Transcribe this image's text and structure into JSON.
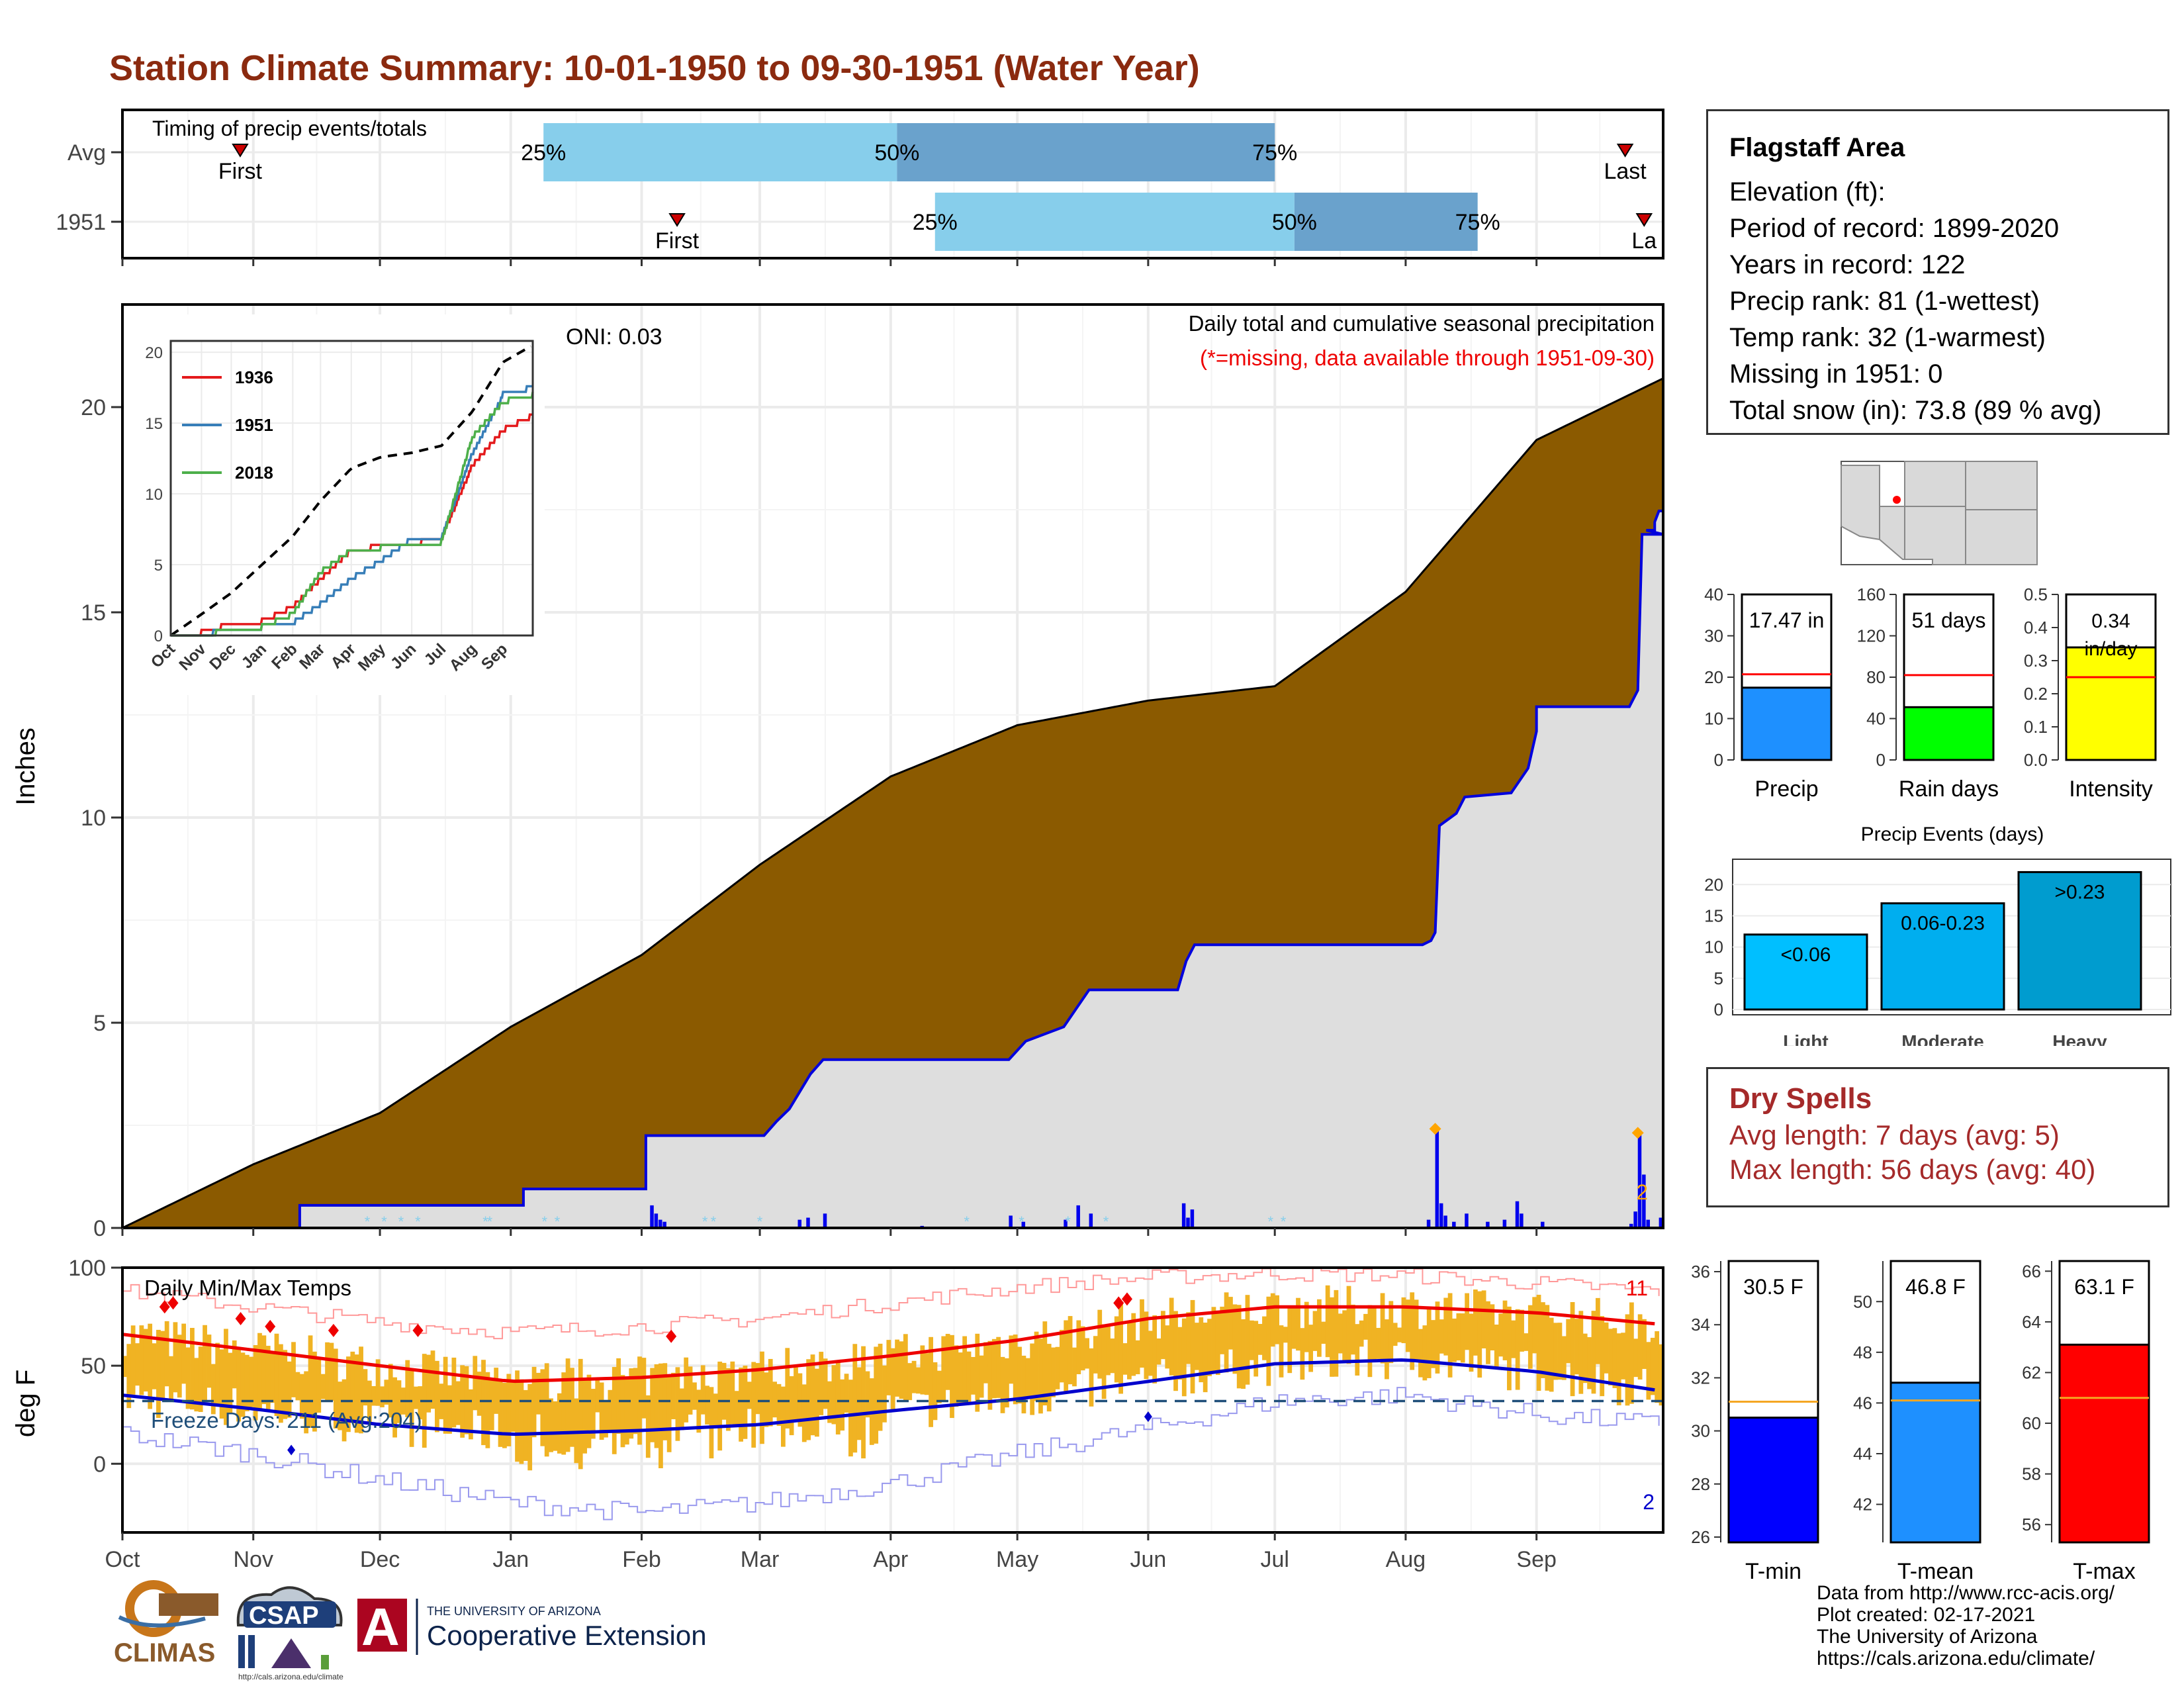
{
  "title": "Station Climate Summary: 10-01-1950 to 09-30-1951 (Water Year)",
  "timing_panel": {
    "label": "Timing of precip events/totals",
    "rows": [
      {
        "name": "Avg",
        "first_label": "First",
        "last_label": "Last",
        "first_month": 0.9,
        "last_month": 11.7,
        "p25": 3.25,
        "p50": 6.05,
        "p75": 9.0,
        "p25_label": "25%",
        "p50_label": "50%",
        "p75_label": "75%"
      },
      {
        "name": "1951",
        "first_label": "First",
        "last_label": "La",
        "first_month": 4.3,
        "last_month": 11.85,
        "p25": 6.35,
        "p50": 9.15,
        "p75": 10.55,
        "p25_label": "25%",
        "p50_label": "50%",
        "p75_label": "75%"
      }
    ],
    "colors": {
      "light": "#87ceeb",
      "dark": "#6aa2cc",
      "marker": "#cc0000"
    }
  },
  "months": [
    "Oct",
    "Nov",
    "Dec",
    "Jan",
    "Feb",
    "Mar",
    "Apr",
    "May",
    "Jun",
    "Jul",
    "Aug",
    "Sep"
  ],
  "precip_panel": {
    "ylabel": "Inches",
    "yticks": [
      "0",
      "5",
      "10",
      "15",
      "20"
    ],
    "header": "Daily total and cumulative seasonal precipitation",
    "missing_note": "(*=missing, data available through 1951-09-30)",
    "oni": "ONI: 0.03",
    "corner_count": "2",
    "colors": {
      "avg_fill": "#8b5a00",
      "obs_fill": "#dedede",
      "obs_line": "#0000dd",
      "daily_bar": "#0000ee",
      "trace": "#87ceeb",
      "marker": "#ffa500"
    }
  },
  "inset": {
    "yticks": [
      "0",
      "5",
      "10",
      "15",
      "20"
    ],
    "xticks": [
      "Oct",
      "Nov",
      "Dec",
      "Jan",
      "Feb",
      "Mar",
      "Apr",
      "May",
      "Jun",
      "Jul",
      "Aug",
      "Sep"
    ],
    "legend": [
      {
        "name": "1936",
        "color": "#e41a1c"
      },
      {
        "name": "1951",
        "color": "#377eb8"
      },
      {
        "name": "2018",
        "color": "#4daf4a"
      }
    ]
  },
  "temp_panel": {
    "ylabel": "deg F",
    "yticks": [
      "0",
      "50",
      "100"
    ],
    "label": "Daily Min/Max Temps",
    "freeze_label": "Freeze Days: 211 (Avg:204)",
    "max_record_count": "11",
    "min_record_count": "2",
    "colors": {
      "bar": "#f0b323",
      "max_smooth": "#ee0000",
      "min_smooth": "#0000cc",
      "record_max": "#ff9999",
      "record_min": "#9999ee",
      "freeze_line": "#1f4e79"
    }
  },
  "info": {
    "title": "Flagstaff Area",
    "lines": [
      "Elevation (ft):",
      "Period of record: 1899-2020",
      "Years in record: 122",
      "Precip rank: 81 (1-wettest)",
      "Temp rank: 32 (1-warmest)",
      "Missing in 1951: 0",
      "Total snow (in): 73.8 (89 % avg)"
    ]
  },
  "mini_bars": [
    {
      "name": "Precip",
      "value_label": "17.47 in",
      "value": 17.47,
      "avg": 20.7,
      "ymax": 40,
      "ticks": [
        "0",
        "10",
        "20",
        "30",
        "40"
      ],
      "tick_values": [
        0,
        10,
        20,
        30,
        40
      ],
      "color": "#1e90ff"
    },
    {
      "name": "Rain days",
      "value_label": "51 days",
      "value": 51,
      "avg": 82,
      "ymax": 160,
      "ticks": [
        "0",
        "40",
        "80",
        "120",
        "160"
      ],
      "tick_values": [
        0,
        40,
        80,
        120,
        160
      ],
      "color": "#00ff00"
    },
    {
      "name": "Intensity",
      "value_label": "0.34 in/day",
      "value_line1": "0.34",
      "value_line2": "in/day",
      "value": 0.34,
      "avg": 0.25,
      "ymax": 0.5,
      "ticks": [
        "0.0",
        "0.1",
        "0.2",
        "0.3",
        "0.4",
        "0.5"
      ],
      "tick_values": [
        0,
        0.1,
        0.2,
        0.3,
        0.4,
        0.5
      ],
      "color": "#ffff00"
    }
  ],
  "precip_events": {
    "title": "Precip Events (days)",
    "ticks": [
      "0",
      "5",
      "10",
      "15",
      "20"
    ],
    "bars": [
      {
        "category": "Light",
        "range_label": "<0.06",
        "value": 12,
        "color": "#00bfff"
      },
      {
        "category": "Moderate",
        "range_label": "0.06-0.23",
        "value": 17,
        "color": "#00aeef"
      },
      {
        "category": "Heavy",
        "range_label": ">0.23",
        "value": 22,
        "color": "#009ccf"
      }
    ]
  },
  "dry_spells": {
    "title": "Dry Spells",
    "avg_length": "Avg length: 7 days (avg: 5)",
    "max_length": "Max length: 56 days (avg: 40)"
  },
  "temp_bars": [
    {
      "name": "T-min",
      "value_label": "30.5 F",
      "value": 30.5,
      "avg": 31.1,
      "ymin": 25.8,
      "ymax": 36.4,
      "ticks": [
        "26",
        "28",
        "30",
        "32",
        "34",
        "36"
      ],
      "tick_values": [
        26,
        28,
        30,
        32,
        34,
        36
      ],
      "color": "#0000ff"
    },
    {
      "name": "T-mean",
      "value_label": "46.8 F",
      "value": 46.8,
      "avg": 46.1,
      "ymin": 40.5,
      "ymax": 51.6,
      "ticks": [
        "42",
        "44",
        "46",
        "48",
        "50"
      ],
      "tick_values": [
        42,
        44,
        46,
        48,
        50
      ],
      "color": "#1e90ff"
    },
    {
      "name": "T-max",
      "value_label": "63.1 F",
      "value": 63.1,
      "avg": 61.0,
      "ymin": 55.3,
      "ymax": 66.4,
      "ticks": [
        "56",
        "58",
        "60",
        "62",
        "64",
        "66"
      ],
      "tick_values": [
        56,
        58,
        60,
        62,
        64,
        66
      ],
      "color": "#ff0000"
    }
  ],
  "logos": {
    "climas": "CLIMAS",
    "csap": "CSAP",
    "csap_url": "http://cals.arizona.edu/climate",
    "ua_small": "THE UNIVERSITY OF ARIZONA",
    "ua_big": "Cooperative Extension",
    "ua_letter": "A"
  },
  "credits": [
    "Data from http://www.rcc-acis.org/",
    "Plot created: 02-17-2021",
    "The University of Arizona",
    "https://cals.arizona.edu/climate/"
  ],
  "chart_data": [
    {
      "type": "bar",
      "title": "Timing of precip events/totals",
      "categories": [
        "Avg",
        "1951"
      ],
      "series": [
        {
          "name": "First",
          "values": [
            "Nov",
            "Feb"
          ]
        },
        {
          "name": "25%",
          "values": [
            "Jan",
            "Apr"
          ]
        },
        {
          "name": "50%",
          "values": [
            "Apr",
            "Jul"
          ]
        },
        {
          "name": "75%",
          "values": [
            "Jul",
            "Aug"
          ]
        },
        {
          "name": "Last",
          "values": [
            "Sep",
            "Sep"
          ]
        }
      ]
    },
    {
      "type": "area",
      "title": "Daily total and cumulative seasonal precipitation",
      "ylabel": "Inches",
      "ylim": [
        0,
        22.5
      ],
      "x": [
        "Oct",
        "Nov",
        "Dec",
        "Jan",
        "Feb",
        "Mar",
        "Apr",
        "May",
        "Jun",
        "Jul",
        "Aug",
        "Sep",
        "Sep 30"
      ],
      "series": [
        {
          "name": "Avg",
          "values": [
            0.0,
            1.55,
            2.8,
            4.9,
            6.65,
            8.85,
            11.0,
            12.25,
            12.85,
            13.2,
            15.5,
            19.2,
            20.7
          ]
        },
        {
          "name": "1951",
          "values": [
            0.0,
            0.0,
            0.55,
            0.6,
            0.95,
            2.25,
            4.1,
            5.35,
            6.9,
            6.9,
            9.8,
            13.1,
            17.47
          ]
        }
      ]
    },
    {
      "type": "line",
      "title": "Inset cumulative precipitation",
      "x": [
        "Oct",
        "Nov",
        "Dec",
        "Jan",
        "Feb",
        "Mar",
        "Apr",
        "May",
        "Jun",
        "Jul",
        "Aug",
        "Sep",
        "Sep 30"
      ],
      "ylim": [
        0,
        20
      ],
      "series": [
        {
          "name": "Avg",
          "values": [
            0.0,
            1.5,
            3.0,
            5.0,
            7.0,
            9.5,
            11.8,
            12.6,
            12.9,
            13.4,
            15.8,
            19.3,
            20.5
          ]
        },
        {
          "name": "1936",
          "values": [
            0.0,
            0.2,
            0.8,
            1.0,
            2.0,
            4.0,
            6.0,
            6.3,
            6.5,
            6.8,
            12.0,
            14.5,
            15.5
          ]
        },
        {
          "name": "1951",
          "values": [
            0.0,
            0.0,
            0.5,
            0.6,
            0.9,
            2.2,
            4.0,
            5.3,
            6.8,
            6.9,
            12.8,
            17.0,
            17.5
          ]
        },
        {
          "name": "2018",
          "values": [
            0.0,
            0.1,
            0.3,
            0.6,
            1.5,
            4.5,
            6.0,
            6.2,
            6.4,
            6.6,
            14.0,
            16.5,
            17.0
          ]
        }
      ]
    },
    {
      "type": "line",
      "title": "Daily Min/Max Temps",
      "ylabel": "deg F",
      "ylim": [
        -35,
        100
      ],
      "x": [
        "Oct",
        "Nov",
        "Dec",
        "Jan",
        "Feb",
        "Mar",
        "Apr",
        "May",
        "Jun",
        "Jul",
        "Aug",
        "Sep",
        "Sep 30"
      ],
      "series": [
        {
          "name": "Avg max",
          "values": [
            66,
            58,
            50,
            42,
            44,
            48,
            55,
            63,
            74,
            80,
            80,
            77,
            71
          ]
        },
        {
          "name": "Avg min",
          "values": [
            35,
            28,
            20,
            15,
            17,
            20,
            27,
            33,
            42,
            51,
            53,
            47,
            37
          ]
        },
        {
          "name": "Record max",
          "values": [
            88,
            80,
            72,
            67,
            70,
            74,
            82,
            90,
            95,
            97,
            96,
            92,
            88
          ]
        },
        {
          "name": "Record min",
          "values": [
            15,
            5,
            -8,
            -20,
            -25,
            -20,
            -10,
            5,
            18,
            32,
            35,
            25,
            20
          ]
        }
      ]
    },
    {
      "type": "bar",
      "title": "Precip Events (days)",
      "categories": [
        "Light",
        "Moderate",
        "Heavy"
      ],
      "values": [
        12,
        17,
        22
      ]
    },
    {
      "type": "bar",
      "categories": [
        "Precip",
        "Rain days",
        "Intensity"
      ],
      "series": [
        {
          "name": "1951",
          "values": [
            17.47,
            51,
            0.34
          ]
        },
        {
          "name": "Avg",
          "values": [
            20.7,
            82,
            0.25
          ]
        }
      ]
    },
    {
      "type": "bar",
      "categories": [
        "T-min",
        "T-mean",
        "T-max"
      ],
      "series": [
        {
          "name": "1951",
          "values": [
            30.5,
            46.8,
            63.1
          ]
        },
        {
          "name": "Avg",
          "values": [
            31.1,
            46.1,
            61.0
          ]
        }
      ]
    }
  ]
}
